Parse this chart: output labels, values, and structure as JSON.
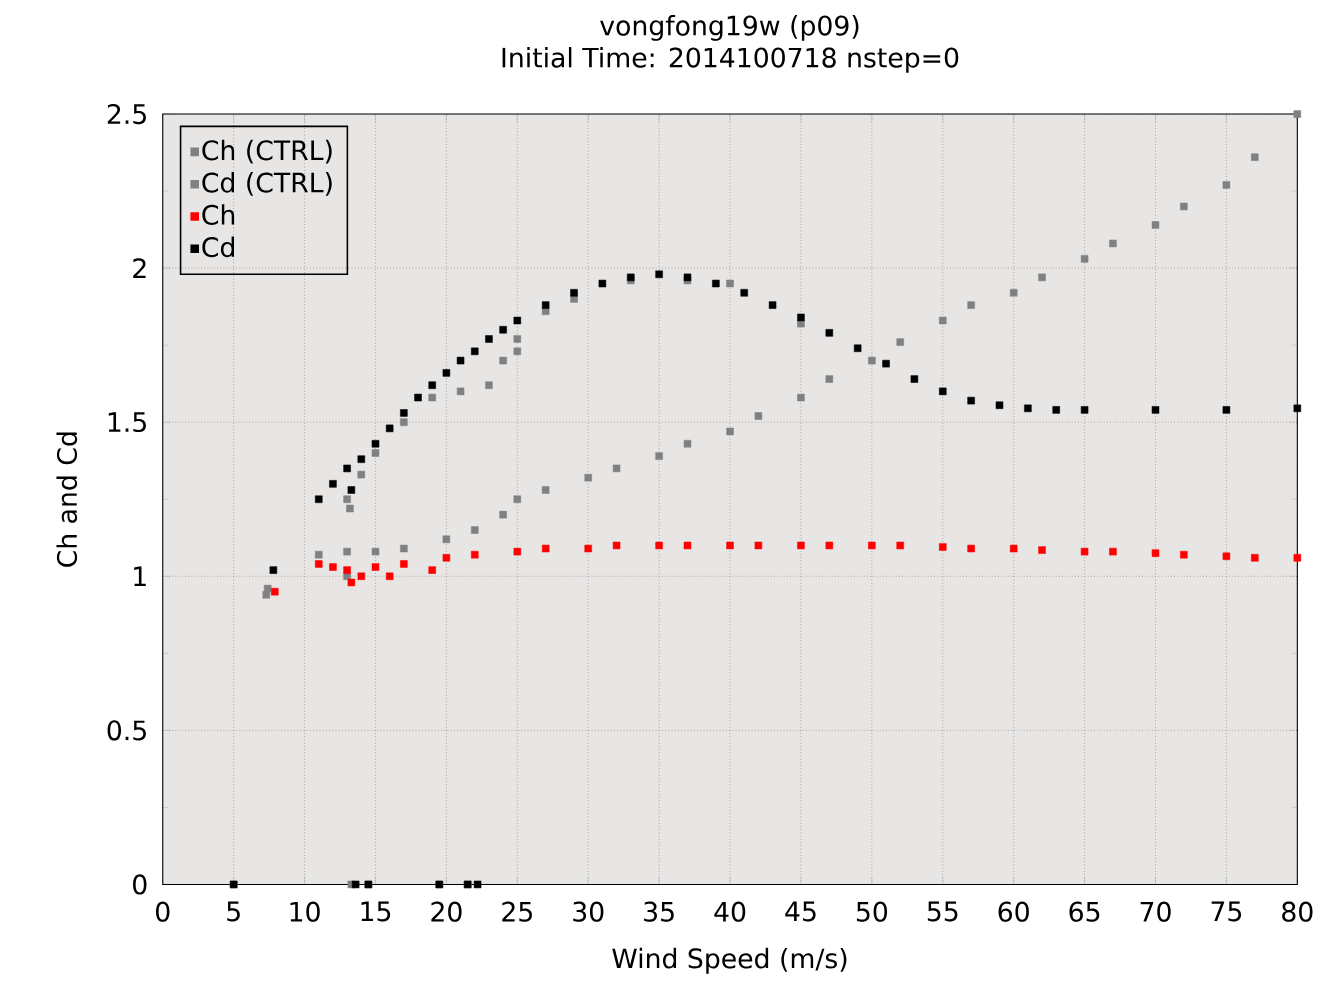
{
  "chart_data": {
    "type": "scatter",
    "title": "vongfong19w (p09)",
    "subtitle": "Initial Time: 2014100718 nstep=0",
    "xlabel": "Wind Speed (m/s)",
    "ylabel": "Ch and Cd",
    "xlim": [
      0,
      80
    ],
    "ylim": [
      0,
      2.5
    ],
    "xticks": [
      0,
      5,
      10,
      15,
      20,
      25,
      30,
      35,
      40,
      45,
      50,
      55,
      60,
      65,
      70,
      75,
      80
    ],
    "yticks": [
      0,
      0.5,
      1,
      1.5,
      2,
      2.5
    ],
    "grid": true,
    "legend": "top left",
    "marker": "square",
    "series": [
      {
        "name": "Ch (CTRL)",
        "color": "#808080",
        "x": [
          7.4,
          7.3,
          13,
          11,
          13,
          15,
          17,
          20,
          22,
          24,
          25,
          27,
          30,
          32,
          35,
          37,
          40,
          42,
          45,
          47,
          50,
          52,
          55,
          57,
          60,
          62,
          65,
          67,
          70,
          72,
          75,
          77,
          80,
          13.3,
          14.5,
          19.5,
          21.5,
          5
        ],
        "values": [
          0.96,
          0.94,
          1.0,
          1.07,
          1.08,
          1.08,
          1.09,
          1.12,
          1.15,
          1.2,
          1.25,
          1.28,
          1.32,
          1.35,
          1.39,
          1.43,
          1.47,
          1.52,
          1.58,
          1.64,
          1.7,
          1.76,
          1.83,
          1.88,
          1.92,
          1.97,
          2.03,
          2.08,
          2.14,
          2.2,
          2.27,
          2.36,
          2.5,
          0,
          0,
          0,
          0,
          0
        ]
      },
      {
        "name": "Cd (CTRL)",
        "color": "#808080",
        "x": [
          13,
          13.2,
          14,
          15,
          17,
          19,
          21,
          23,
          24,
          25,
          25,
          27,
          29,
          33,
          37,
          40,
          45
        ],
        "values": [
          1.25,
          1.22,
          1.33,
          1.4,
          1.5,
          1.58,
          1.6,
          1.62,
          1.7,
          1.73,
          1.77,
          1.86,
          1.9,
          1.96,
          1.96,
          1.95,
          1.82
        ]
      },
      {
        "name": "Ch",
        "color": "#ff0000",
        "x": [
          7.9,
          13.3,
          11,
          12,
          13,
          14,
          15,
          16,
          17,
          19,
          20,
          22,
          25,
          27,
          30,
          32,
          35,
          37,
          40,
          42,
          45,
          47,
          50,
          52,
          55,
          57,
          60,
          62,
          65,
          67,
          70,
          72,
          75,
          77,
          80
        ],
        "values": [
          0.95,
          0.98,
          1.04,
          1.03,
          1.02,
          1.0,
          1.03,
          1.0,
          1.04,
          1.02,
          1.06,
          1.07,
          1.08,
          1.09,
          1.09,
          1.1,
          1.1,
          1.1,
          1.1,
          1.1,
          1.1,
          1.1,
          1.1,
          1.1,
          1.095,
          1.09,
          1.09,
          1.085,
          1.08,
          1.08,
          1.075,
          1.07,
          1.065,
          1.06,
          1.06
        ]
      },
      {
        "name": "Cd",
        "color": "#000000",
        "x": [
          7.8,
          13.3,
          11,
          12,
          13,
          14,
          15,
          16,
          17,
          18,
          19,
          20,
          21,
          22,
          23,
          24,
          25,
          27,
          29,
          31,
          33,
          35,
          37,
          39,
          41,
          43,
          45,
          47,
          49,
          51,
          53,
          55,
          57,
          59,
          61,
          63,
          65,
          70,
          75,
          80,
          5,
          13.6,
          14.5,
          19.5,
          21.5,
          22.2
        ],
        "values": [
          1.02,
          1.28,
          1.25,
          1.3,
          1.35,
          1.38,
          1.43,
          1.48,
          1.53,
          1.58,
          1.62,
          1.66,
          1.7,
          1.73,
          1.77,
          1.8,
          1.83,
          1.88,
          1.92,
          1.95,
          1.97,
          1.98,
          1.97,
          1.95,
          1.92,
          1.88,
          1.84,
          1.79,
          1.74,
          1.69,
          1.64,
          1.6,
          1.57,
          1.555,
          1.545,
          1.54,
          1.54,
          1.54,
          1.54,
          1.545,
          0,
          0,
          0,
          0,
          0,
          0
        ]
      }
    ]
  }
}
